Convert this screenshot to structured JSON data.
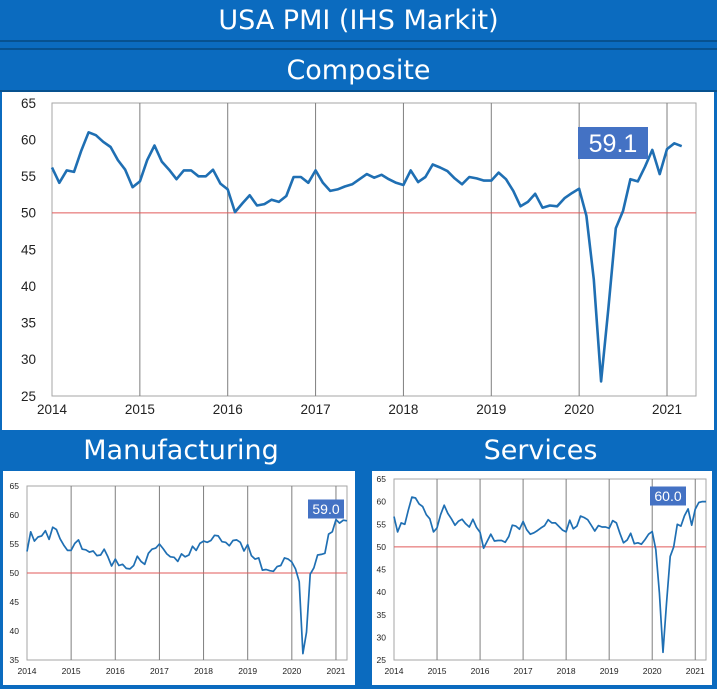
{
  "header": {
    "title": "USA PMI (IHS Markit)",
    "main_chart_label": "Composite",
    "left_chart_label": "Manufacturing",
    "right_chart_label": "Services"
  },
  "colors": {
    "line": "#1f6fb3",
    "threshold": "#e05a5a",
    "grid": "#7f7f7f",
    "badge": "#4472c4",
    "frame": "#0b6bbf"
  },
  "chart_data": [
    {
      "id": "composite",
      "type": "line",
      "title": "Composite",
      "xlim": [
        2014,
        2021.33
      ],
      "ylim": [
        25,
        65
      ],
      "yticks": [
        25,
        30,
        35,
        40,
        45,
        50,
        55,
        60,
        65
      ],
      "xticks": [
        "2014",
        "2015",
        "2016",
        "2017",
        "2018",
        "2019",
        "2020",
        "2021"
      ],
      "threshold": 50,
      "badge": "59.1",
      "grid": "vertical",
      "series": [
        {
          "x": [
            2014.0,
            2014.083,
            2014.167,
            2014.25,
            2014.333,
            2014.417,
            2014.5,
            2014.583,
            2014.667,
            2014.75,
            2014.833,
            2014.917,
            2015.0,
            2015.083,
            2015.167,
            2015.25,
            2015.333,
            2015.417,
            2015.5,
            2015.583,
            2015.667,
            2015.75,
            2015.833,
            2015.917,
            2016.0,
            2016.083,
            2016.167,
            2016.25,
            2016.333,
            2016.417,
            2016.5,
            2016.583,
            2016.667,
            2016.75,
            2016.833,
            2016.917,
            2017.0,
            2017.083,
            2017.167,
            2017.25,
            2017.333,
            2017.417,
            2017.5,
            2017.583,
            2017.667,
            2017.75,
            2017.833,
            2017.917,
            2018.0,
            2018.083,
            2018.167,
            2018.25,
            2018.333,
            2018.417,
            2018.5,
            2018.583,
            2018.667,
            2018.75,
            2018.833,
            2018.917,
            2019.0,
            2019.083,
            2019.167,
            2019.25,
            2019.333,
            2019.417,
            2019.5,
            2019.583,
            2019.667,
            2019.75,
            2019.833,
            2019.917,
            2020.0,
            2020.083,
            2020.167,
            2020.25,
            2020.333,
            2020.417,
            2020.5,
            2020.583,
            2020.667,
            2020.75,
            2020.833,
            2020.917,
            2021.0,
            2021.083,
            2021.167
          ],
          "values": [
            56.2,
            54.1,
            55.8,
            55.6,
            58.5,
            61.0,
            60.6,
            59.7,
            59.0,
            57.2,
            55.9,
            53.5,
            54.3,
            57.2,
            59.2,
            57.0,
            55.9,
            54.6,
            55.8,
            55.8,
            55.0,
            55.0,
            55.9,
            54.0,
            53.2,
            50.1,
            51.3,
            52.4,
            51.0,
            51.2,
            51.8,
            51.5,
            52.3,
            54.9,
            54.9,
            54.1,
            55.8,
            54.1,
            53.0,
            53.2,
            53.6,
            53.9,
            54.6,
            55.3,
            54.8,
            55.2,
            54.6,
            54.1,
            53.8,
            55.8,
            54.2,
            54.9,
            56.6,
            56.2,
            55.7,
            54.7,
            53.9,
            54.9,
            54.7,
            54.4,
            54.4,
            55.5,
            54.6,
            53.0,
            50.9,
            51.5,
            52.6,
            50.7,
            51.0,
            50.9,
            52.0,
            52.7,
            53.3,
            49.6,
            40.9,
            27.0,
            37.0,
            47.9,
            50.3,
            54.6,
            54.3,
            56.3,
            58.6,
            55.3,
            58.7,
            59.5,
            59.1
          ]
        }
      ]
    },
    {
      "id": "manufacturing",
      "type": "line",
      "title": "Manufacturing",
      "xlim": [
        2014,
        2021.25
      ],
      "ylim": [
        35,
        65
      ],
      "yticks": [
        35,
        40,
        45,
        50,
        55,
        60,
        65
      ],
      "xticks": [
        "2014",
        "2015",
        "2016",
        "2017",
        "2018",
        "2019",
        "2020",
        "2021"
      ],
      "threshold": 50,
      "badge": "59.0",
      "grid": "vertical",
      "series": [
        {
          "x": [
            2014.0,
            2014.083,
            2014.167,
            2014.25,
            2014.333,
            2014.417,
            2014.5,
            2014.583,
            2014.667,
            2014.75,
            2014.833,
            2014.917,
            2015.0,
            2015.083,
            2015.167,
            2015.25,
            2015.333,
            2015.417,
            2015.5,
            2015.583,
            2015.667,
            2015.75,
            2015.833,
            2015.917,
            2016.0,
            2016.083,
            2016.167,
            2016.25,
            2016.333,
            2016.417,
            2016.5,
            2016.583,
            2016.667,
            2016.75,
            2016.833,
            2016.917,
            2017.0,
            2017.083,
            2017.167,
            2017.25,
            2017.333,
            2017.417,
            2017.5,
            2017.583,
            2017.667,
            2017.75,
            2017.833,
            2017.917,
            2018.0,
            2018.083,
            2018.167,
            2018.25,
            2018.333,
            2018.417,
            2018.5,
            2018.583,
            2018.667,
            2018.75,
            2018.833,
            2018.917,
            2019.0,
            2019.083,
            2019.167,
            2019.25,
            2019.333,
            2019.417,
            2019.5,
            2019.583,
            2019.667,
            2019.75,
            2019.833,
            2019.917,
            2020.0,
            2020.083,
            2020.167,
            2020.25,
            2020.333,
            2020.417,
            2020.5,
            2020.583,
            2020.667,
            2020.75,
            2020.833,
            2020.917,
            2021.0,
            2021.083,
            2021.167,
            2021.25
          ],
          "values": [
            53.7,
            57.1,
            55.5,
            56.2,
            56.4,
            57.3,
            55.8,
            57.9,
            57.5,
            55.9,
            54.8,
            53.9,
            53.9,
            55.1,
            55.7,
            54.1,
            54.0,
            53.6,
            53.8,
            53.0,
            53.1,
            54.1,
            52.8,
            51.2,
            52.4,
            51.3,
            51.5,
            50.8,
            50.7,
            51.3,
            52.9,
            52.0,
            51.5,
            53.4,
            54.1,
            54.3,
            55.0,
            54.2,
            53.3,
            52.8,
            52.7,
            52.0,
            53.3,
            52.8,
            53.1,
            54.6,
            53.9,
            55.1,
            55.5,
            55.3,
            55.6,
            56.5,
            56.4,
            55.4,
            55.3,
            54.7,
            55.6,
            55.7,
            55.3,
            53.8,
            54.9,
            53.0,
            52.4,
            52.6,
            50.5,
            50.6,
            50.4,
            50.3,
            51.1,
            51.3,
            52.6,
            52.4,
            51.9,
            50.7,
            48.5,
            36.1,
            39.8,
            49.8,
            50.9,
            53.1,
            53.2,
            53.4,
            56.7,
            57.1,
            59.2,
            58.6,
            59.1,
            59.0
          ]
        }
      ]
    },
    {
      "id": "services",
      "type": "line",
      "title": "Services",
      "xlim": [
        2014,
        2021.25
      ],
      "ylim": [
        25,
        65
      ],
      "yticks": [
        25,
        30,
        35,
        40,
        45,
        50,
        55,
        60,
        65
      ],
      "xticks": [
        "2014",
        "2015",
        "2016",
        "2017",
        "2018",
        "2019",
        "2020",
        "2021"
      ],
      "threshold": 50,
      "badge": "60.0",
      "grid": "vertical",
      "series": [
        {
          "x": [
            2014.0,
            2014.083,
            2014.167,
            2014.25,
            2014.333,
            2014.417,
            2014.5,
            2014.583,
            2014.667,
            2014.75,
            2014.833,
            2014.917,
            2015.0,
            2015.083,
            2015.167,
            2015.25,
            2015.333,
            2015.417,
            2015.5,
            2015.583,
            2015.667,
            2015.75,
            2015.833,
            2015.917,
            2016.0,
            2016.083,
            2016.167,
            2016.25,
            2016.333,
            2016.417,
            2016.5,
            2016.583,
            2016.667,
            2016.75,
            2016.833,
            2016.917,
            2017.0,
            2017.083,
            2017.167,
            2017.25,
            2017.333,
            2017.417,
            2017.5,
            2017.583,
            2017.667,
            2017.75,
            2017.833,
            2017.917,
            2018.0,
            2018.083,
            2018.167,
            2018.25,
            2018.333,
            2018.417,
            2018.5,
            2018.583,
            2018.667,
            2018.75,
            2018.833,
            2018.917,
            2019.0,
            2019.083,
            2019.167,
            2019.25,
            2019.333,
            2019.417,
            2019.5,
            2019.583,
            2019.667,
            2019.75,
            2019.833,
            2019.917,
            2020.0,
            2020.083,
            2020.167,
            2020.25,
            2020.333,
            2020.417,
            2020.5,
            2020.583,
            2020.667,
            2020.75,
            2020.833,
            2020.917,
            2021.0,
            2021.083,
            2021.167,
            2021.25
          ],
          "values": [
            56.7,
            53.3,
            55.3,
            55.0,
            58.1,
            61.0,
            60.8,
            59.5,
            58.9,
            57.1,
            56.2,
            53.3,
            54.2,
            57.1,
            59.2,
            57.4,
            56.2,
            54.8,
            55.7,
            56.1,
            55.1,
            54.4,
            56.1,
            54.3,
            53.2,
            49.7,
            51.3,
            52.8,
            51.3,
            51.4,
            51.4,
            51.0,
            52.3,
            54.8,
            54.6,
            53.9,
            55.6,
            53.8,
            52.8,
            53.1,
            53.6,
            54.2,
            54.7,
            56.0,
            55.3,
            55.3,
            54.5,
            53.7,
            53.3,
            55.9,
            54.0,
            54.6,
            56.8,
            56.5,
            56.0,
            54.8,
            53.5,
            54.7,
            54.4,
            54.4,
            54.1,
            55.8,
            55.3,
            53.0,
            50.9,
            51.5,
            53.0,
            50.7,
            50.9,
            50.6,
            51.6,
            52.8,
            53.4,
            49.4,
            39.8,
            26.7,
            37.5,
            47.9,
            50.0,
            55.0,
            54.6,
            56.9,
            58.4,
            54.8,
            58.3,
            59.8,
            60.0,
            60.0
          ]
        }
      ]
    }
  ]
}
